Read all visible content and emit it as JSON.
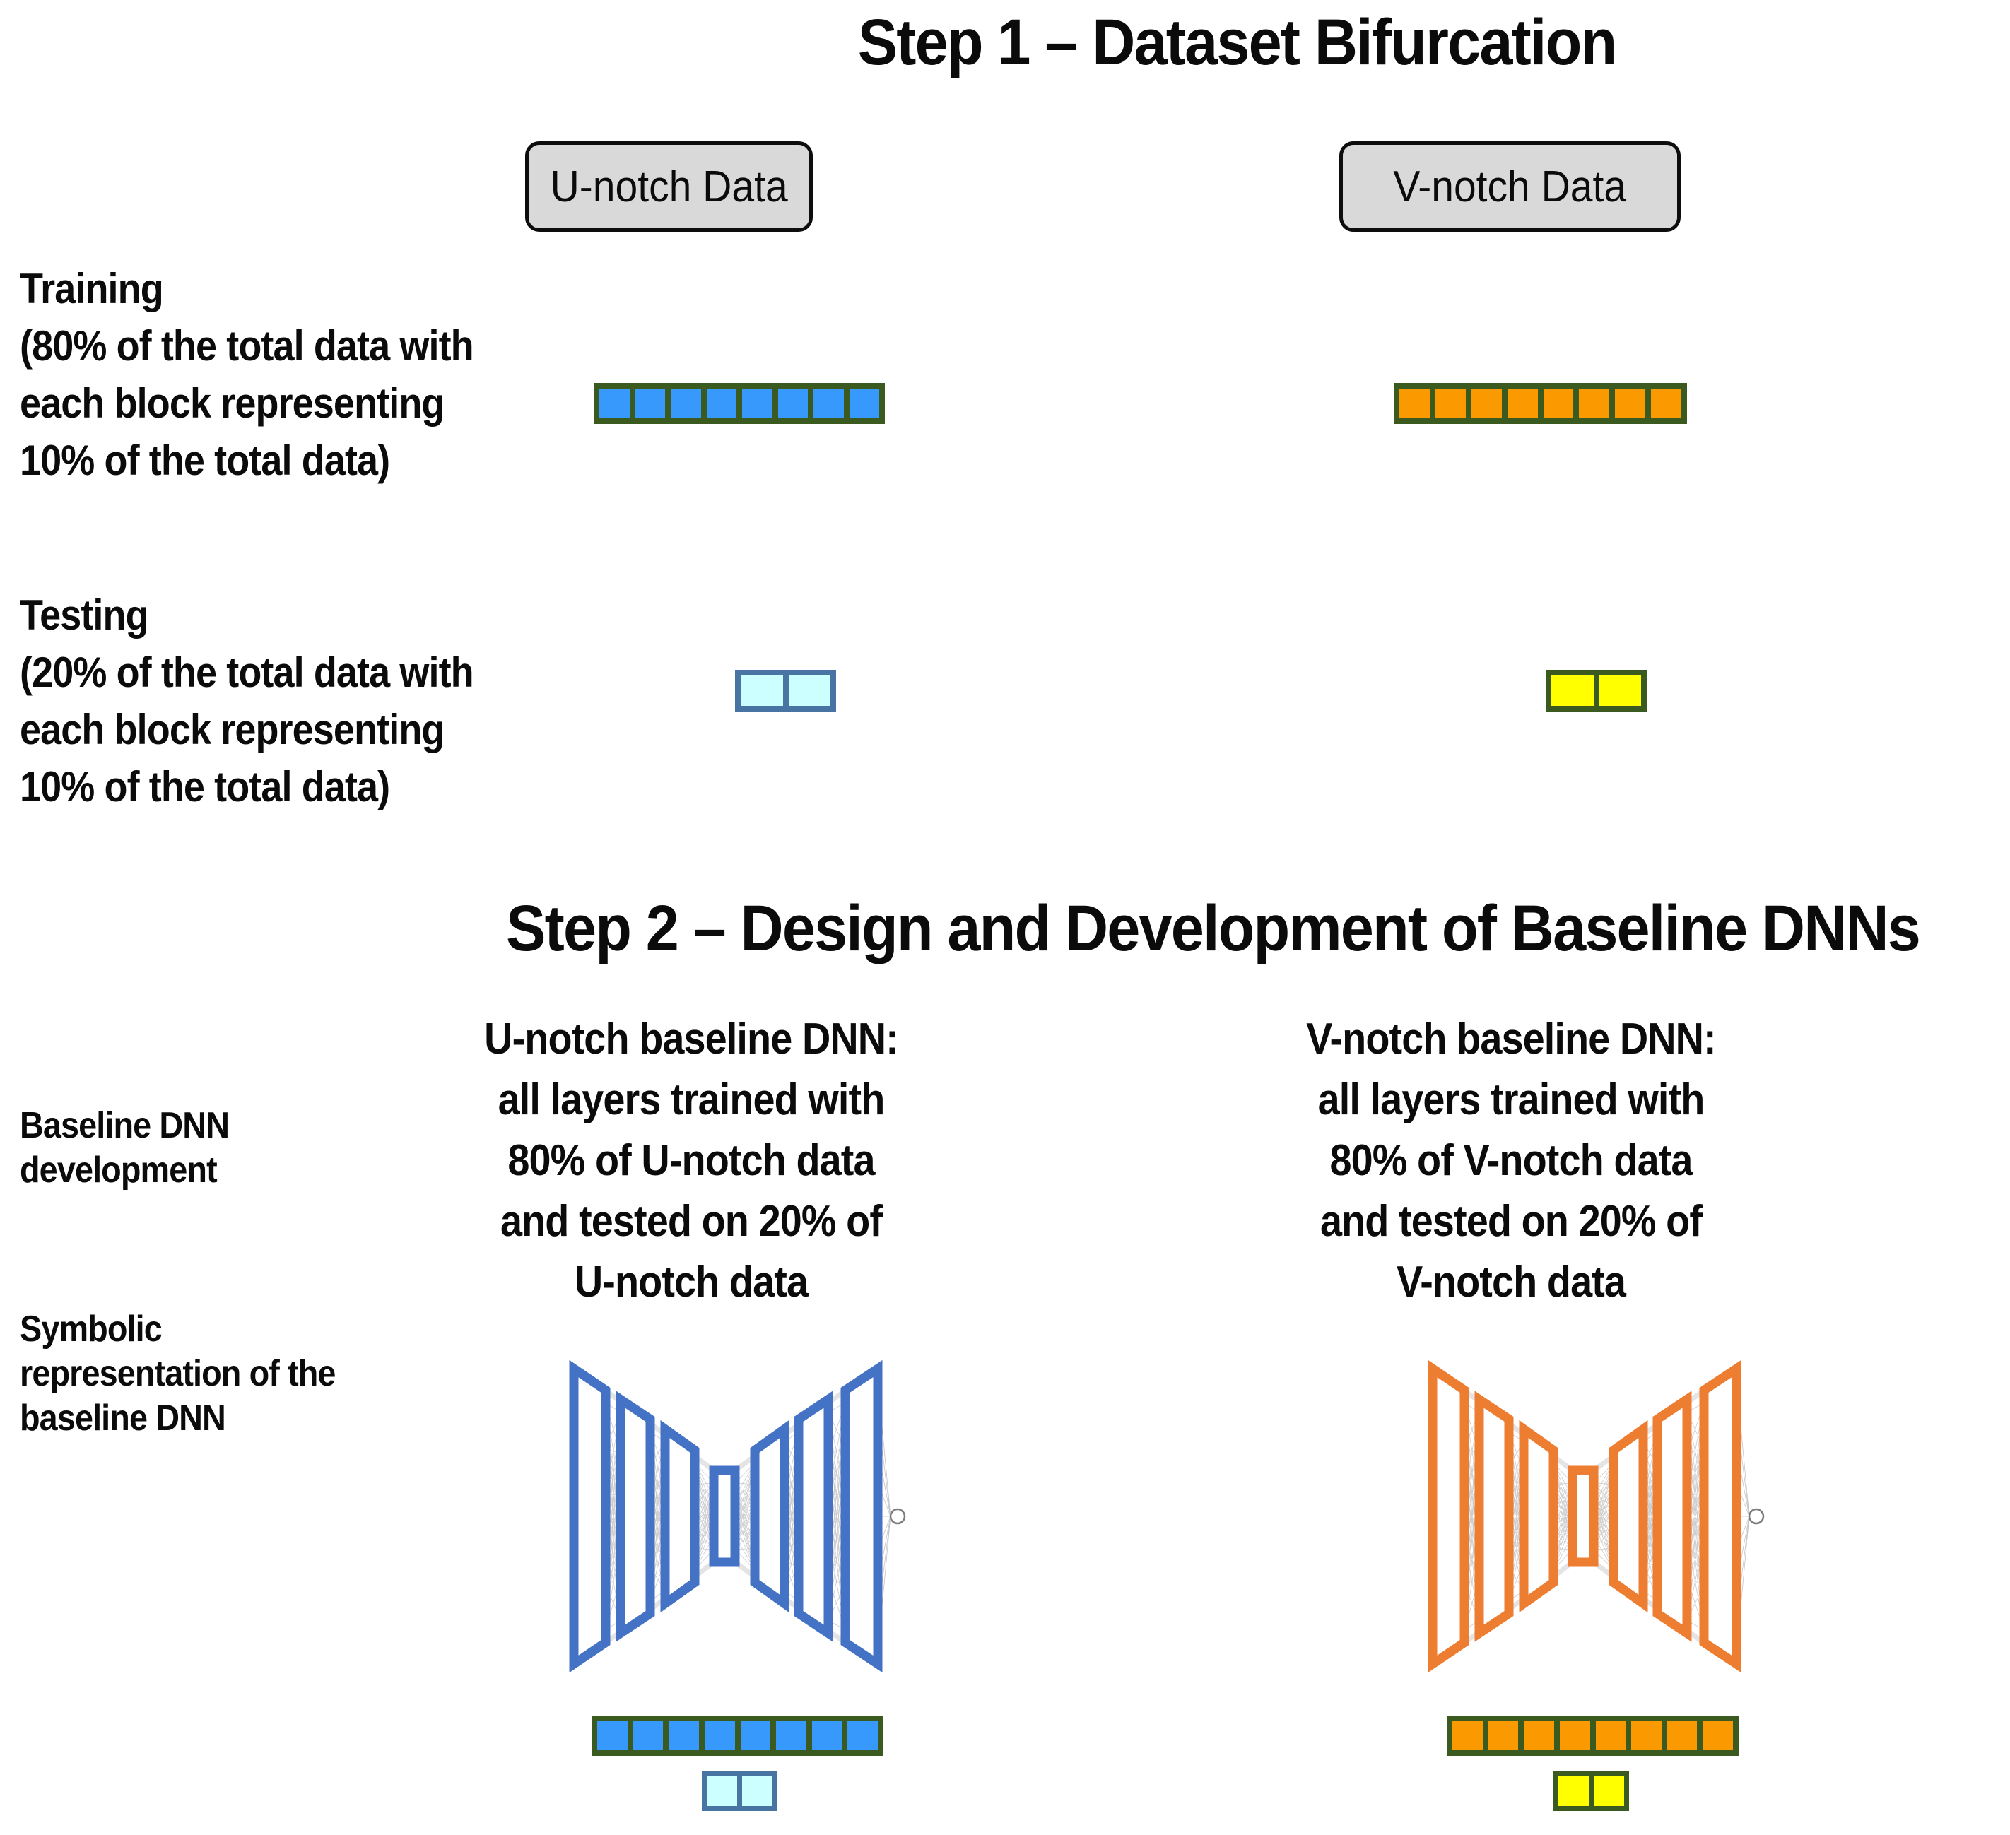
{
  "step1": {
    "title": "Step 1 – Dataset Bifurcation",
    "u_header": "U-notch Data",
    "v_header": "V-notch Data",
    "training_label": "Training\n(80% of the total data with\neach block representing\n10% of the total data)",
    "testing_label": "Testing\n(20% of the total data with\neach block representing\n10% of the total data)",
    "bars": {
      "u_training": {
        "blocks": 8,
        "fill": "#3899FC",
        "border": "#3A5A20"
      },
      "v_training": {
        "blocks": 8,
        "fill": "#FB9A00",
        "border": "#3A5A20"
      },
      "u_testing": {
        "blocks": 2,
        "fill": "#CCFFFF",
        "border": "#4874A3"
      },
      "v_testing": {
        "blocks": 2,
        "fill": "#FFFF00",
        "border": "#3A5A20"
      }
    },
    "header_box": {
      "bg": "#D9D9D9",
      "border": "#0D0D0D"
    }
  },
  "step2": {
    "title": "Step 2 – Design and Development of Baseline DNNs",
    "development_label": "Baseline DNN\ndevelopment",
    "symbolic_label": "Symbolic\nrepresentation of the\nbaseline DNN",
    "u_description": "U-notch baseline DNN:\nall layers trained with\n80% of U-notch data\nand tested on 20% of\nU-notch data",
    "v_description": "V-notch baseline DNN:\nall layers trained with\n80% of V-notch data\nand tested on 20% of\nV-notch data",
    "dnn": {
      "layer_count": 7,
      "output_node_count": 1,
      "u_color": "#4472C4",
      "v_color": "#ED7D31"
    }
  }
}
